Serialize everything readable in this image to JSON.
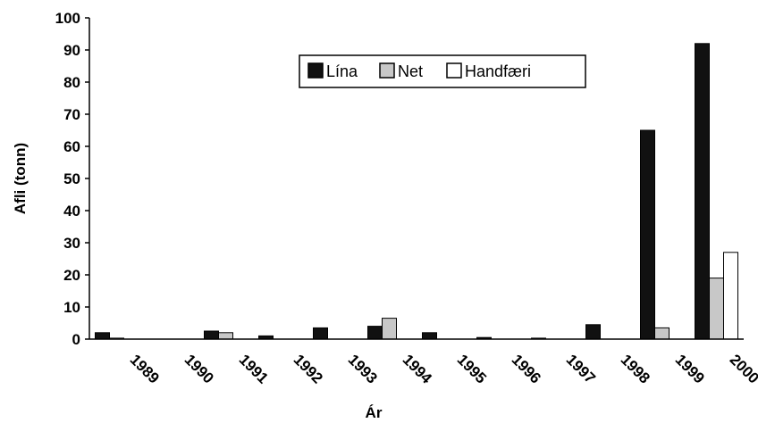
{
  "chart_data": {
    "type": "bar",
    "x_label": "Ár",
    "y_label": "Afli (tonn)",
    "categories": [
      "1989",
      "1990",
      "1991",
      "1992",
      "1993",
      "1994",
      "1995",
      "1996",
      "1997",
      "1998",
      "1999",
      "2000"
    ],
    "series": [
      {
        "name": "Lína",
        "color": "#111111",
        "values": [
          2,
          0,
          2.5,
          1,
          3.5,
          4,
          2,
          0.5,
          0.3,
          4.5,
          65,
          92
        ]
      },
      {
        "name": "Net",
        "color": "#c8c8c8",
        "values": [
          0.3,
          0,
          2,
          0,
          0,
          6.5,
          0,
          0,
          0,
          0,
          3.5,
          19
        ]
      },
      {
        "name": "Handfæri",
        "color": "#ffffff",
        "values": [
          0,
          0,
          0,
          0,
          0,
          0,
          0,
          0,
          0,
          0,
          0,
          27
        ]
      }
    ],
    "ylim": [
      0,
      100
    ],
    "yticks": [
      0,
      10,
      20,
      30,
      40,
      50,
      60,
      70,
      80,
      90,
      100
    ]
  }
}
